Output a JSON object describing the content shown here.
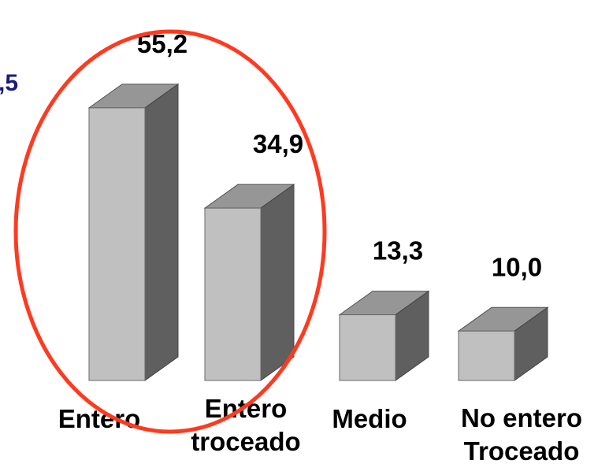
{
  "chart_data": {
    "type": "bar",
    "style": "3d",
    "categories": [
      [
        "Entero"
      ],
      [
        "Entero",
        "troceado"
      ],
      [
        "Medio"
      ],
      [
        "No entero",
        "Troceado"
      ]
    ],
    "values": [
      55.2,
      34.9,
      13.3,
      10.0
    ],
    "value_labels": [
      "55,2",
      "34,9",
      "13,3",
      "10,0"
    ],
    "partial_label_left": ",5",
    "highlight": {
      "shape": "ellipse",
      "encloses": [
        "Entero",
        "Entero troceado"
      ]
    }
  },
  "colors": {
    "bar_front": "#c0c0c0",
    "bar_top": "#969696",
    "bar_side": "#5f5f5f",
    "highlight_ellipse": "#ff3a1f",
    "partial_label": "#1a1a7a",
    "text": "#000000"
  }
}
